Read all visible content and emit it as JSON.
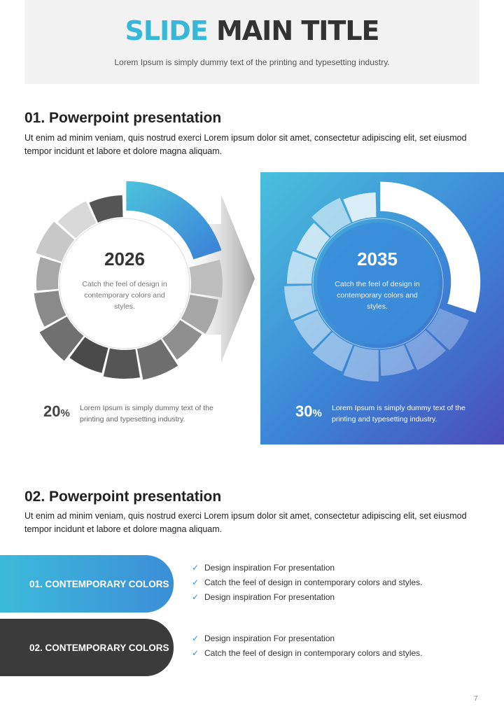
{
  "header": {
    "title_accent": "SLIDE",
    "title_rest": "MAIN TITLE",
    "subtitle": "Lorem Ipsum is simply dummy text of the printing and typesetting industry."
  },
  "section1": {
    "title": "01. Powerpoint presentation",
    "body": "Ut enim ad minim veniam, quis nostrud exerci  Lorem ipsum dolor sit amet, consectetur adipiscing elit, set eiusmod tempor incidunt et labore et dolore magna aliquam."
  },
  "chart_data": [
    {
      "type": "pie",
      "title": "2026",
      "caption": "Catch the feel of design in contemporary colors and styles.",
      "highlight_percent": 20,
      "highlight_color": "#3b9ad9",
      "percent_label": "20",
      "percent_sign": "%",
      "percent_text": "Lorem Ipsum is simply dummy text of the printing and typesetting industry."
    },
    {
      "type": "pie",
      "title": "2035",
      "caption": "Catch the feel of design in contemporary colors and styles.",
      "highlight_percent": 30,
      "highlight_color": "#ffffff",
      "percent_label": "30",
      "percent_sign": "%",
      "percent_text": "Lorem Ipsum is simply dummy text of the printing and typesetting industry."
    }
  ],
  "section2": {
    "title": "02. Powerpoint presentation",
    "body": "Ut enim ad minim veniam, quis nostrud exerci  Lorem ipsum dolor sit amet, consectetur adipiscing elit, set eiusmod tempor incidunt et labore et dolore magna aliquam.",
    "pills": [
      {
        "label": "01. CONTEMPORARY COLORS",
        "color": "#3dbadb"
      },
      {
        "label": "02. CONTEMPORARY COLORS",
        "color": "#3b3b3b"
      }
    ],
    "list1": [
      "Design inspiration For presentation",
      "Catch the feel of design in contemporary colors and styles.",
      "Design inspiration For presentation"
    ],
    "list2": [
      "Design inspiration For presentation",
      "Catch the feel of design in contemporary colors and styles."
    ],
    "check_icon": "✓"
  },
  "page_number": "7"
}
